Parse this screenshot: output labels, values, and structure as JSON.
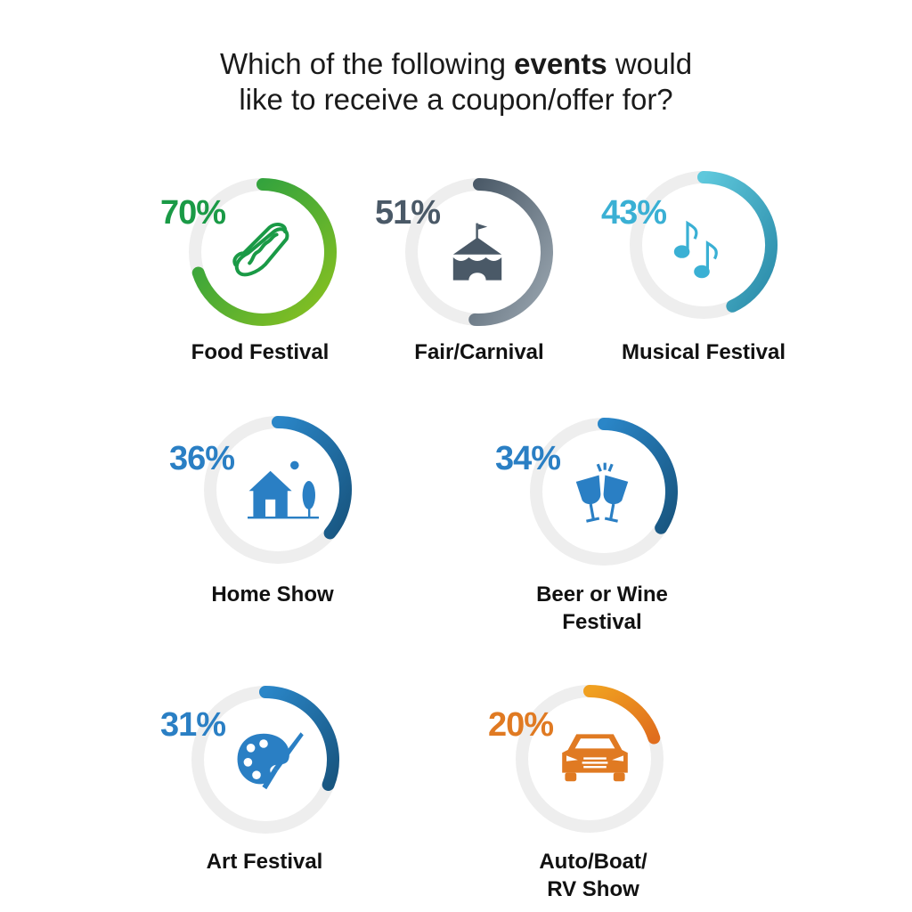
{
  "title": {
    "before": "Which of the following ",
    "bold": "events",
    "after": " would",
    "line2": "like to receive a coupon/offer for?"
  },
  "chart_data": {
    "type": "donut",
    "unit": "%",
    "items": [
      {
        "label": "Food Festival",
        "label_lines": [
          "Food Festival"
        ],
        "value": 70,
        "display": "70%",
        "color_start": "#1a9a46",
        "color_end": "#8cc21f",
        "text_color": "#1a9a46",
        "icon": "hotdog-icon"
      },
      {
        "label": "Fair/Carnival",
        "label_lines": [
          "Fair/Carnival"
        ],
        "value": 51,
        "display": "51%",
        "color_start": "#4a5967",
        "color_end": "#9aa6b0",
        "text_color": "#4a5967",
        "icon": "circus-tent-icon"
      },
      {
        "label": "Musical Festival",
        "label_lines": [
          "Musical Festival"
        ],
        "value": 43,
        "display": "43%",
        "color_start": "#5ec8dc",
        "color_end": "#2a8aa8",
        "text_color": "#3ab0d4",
        "icon": "music-notes-icon"
      },
      {
        "label": "Home Show",
        "label_lines": [
          "Home Show"
        ],
        "value": 36,
        "display": "36%",
        "color_start": "#2a86c8",
        "color_end": "#18557f",
        "text_color": "#2a7fc4",
        "icon": "house-icon"
      },
      {
        "label": "Beer or Wine Festival",
        "label_lines": [
          "Beer or Wine",
          "Festival"
        ],
        "value": 34,
        "display": "34%",
        "color_start": "#2a86c8",
        "color_end": "#18557f",
        "text_color": "#2a7fc4",
        "icon": "wine-glasses-icon"
      },
      {
        "label": "Art Festival",
        "label_lines": [
          "Art Festival"
        ],
        "value": 31,
        "display": "31%",
        "color_start": "#2a86c8",
        "color_end": "#18557f",
        "text_color": "#2a7fc4",
        "icon": "palette-icon"
      },
      {
        "label": "Auto/Boat/RV Show",
        "label_lines": [
          "Auto/Boat/",
          "RV Show"
        ],
        "value": 20,
        "display": "20%",
        "color_start": "#f0a020",
        "color_end": "#e06e1e",
        "text_color": "#e07a22",
        "icon": "car-icon"
      }
    ],
    "track_color": "#eeeeee"
  }
}
